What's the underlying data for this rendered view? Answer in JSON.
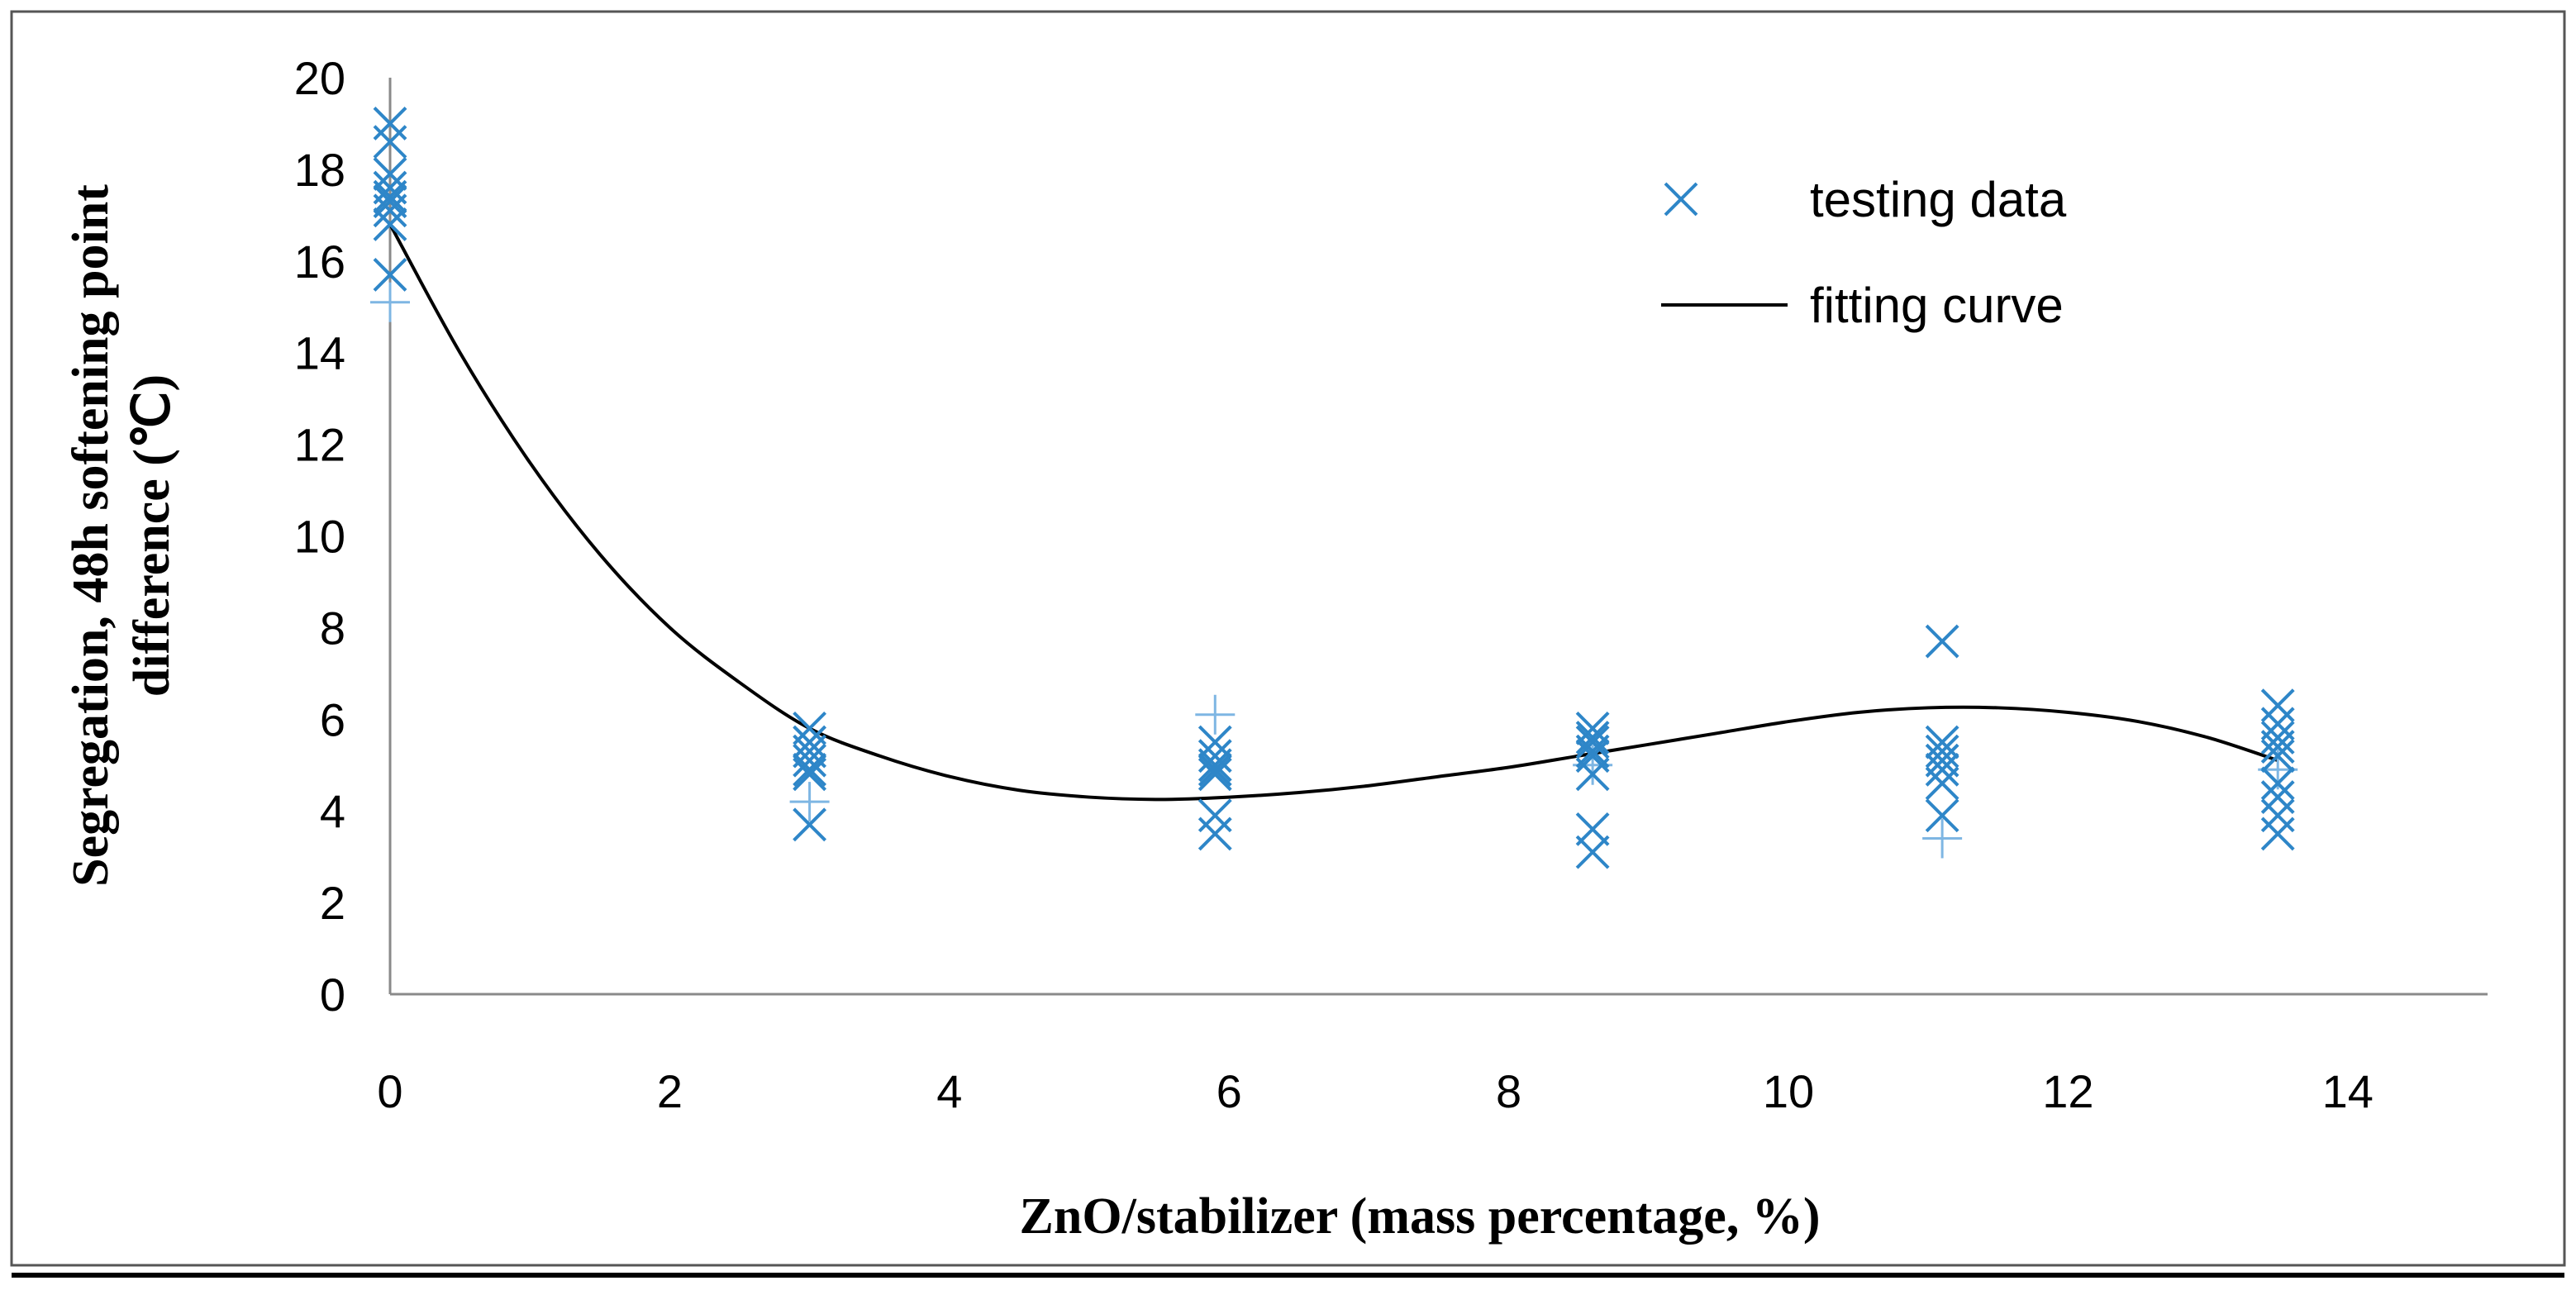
{
  "chart_data": {
    "type": "scatter",
    "title": "",
    "xlabel": "ZnO/stabilizer (mass percentage, %)",
    "ylabel_line1": "Segregation, 48h softening point",
    "ylabel_line2": "difference (℃)",
    "xlim": [
      0,
      15
    ],
    "ylim": [
      0,
      20
    ],
    "x_ticks": [
      "0",
      "2",
      "4",
      "6",
      "8",
      "10",
      "12",
      "14"
    ],
    "y_ticks": [
      "0",
      "2",
      "4",
      "6",
      "8",
      "10",
      "12",
      "14",
      "16",
      "18",
      "20"
    ],
    "grid": false,
    "legend_position": "top-right",
    "series": [
      {
        "name": "testing data",
        "marker": "x",
        "color": "#2E86C8",
        "points": [
          [
            0,
            19.0
          ],
          [
            0,
            18.6
          ],
          [
            0,
            17.9
          ],
          [
            0,
            17.6
          ],
          [
            0,
            17.4
          ],
          [
            0,
            17.3
          ],
          [
            0,
            17.1
          ],
          [
            0,
            16.8
          ],
          [
            0,
            15.7
          ],
          [
            3,
            5.8
          ],
          [
            3,
            5.5
          ],
          [
            3,
            5.3
          ],
          [
            3,
            5.1
          ],
          [
            3,
            4.9
          ],
          [
            3,
            4.8
          ],
          [
            3,
            3.7
          ],
          [
            5.9,
            5.5
          ],
          [
            5.9,
            5.2
          ],
          [
            5.9,
            5.0
          ],
          [
            5.9,
            4.9
          ],
          [
            5.9,
            4.8
          ],
          [
            5.9,
            3.9
          ],
          [
            5.9,
            3.5
          ],
          [
            8.6,
            5.8
          ],
          [
            8.6,
            5.6
          ],
          [
            8.6,
            5.5
          ],
          [
            8.6,
            5.3
          ],
          [
            8.6,
            5.2
          ],
          [
            8.6,
            4.8
          ],
          [
            8.6,
            3.6
          ],
          [
            8.6,
            3.1
          ],
          [
            11.1,
            7.7
          ],
          [
            11.1,
            5.5
          ],
          [
            11.1,
            5.3
          ],
          [
            11.1,
            5.1
          ],
          [
            11.1,
            4.9
          ],
          [
            11.1,
            4.6
          ],
          [
            11.1,
            3.9
          ],
          [
            13.5,
            6.3
          ],
          [
            13.5,
            5.9
          ],
          [
            13.5,
            5.6
          ],
          [
            13.5,
            5.4
          ],
          [
            13.5,
            5.2
          ],
          [
            13.5,
            4.6
          ],
          [
            13.5,
            4.3
          ],
          [
            13.5,
            3.9
          ],
          [
            13.5,
            3.5
          ]
        ]
      },
      {
        "name": "",
        "marker": "+",
        "color": "#7EB6E3",
        "points": [
          [
            0,
            15.1
          ],
          [
            3,
            4.2
          ],
          [
            5.9,
            6.1
          ],
          [
            8.6,
            5.0
          ],
          [
            11.1,
            3.4
          ],
          [
            13.5,
            4.9
          ]
        ]
      },
      {
        "name": "fitting curve",
        "type": "line",
        "color": "#000000",
        "x": [
          0,
          0.5,
          1,
          1.5,
          2,
          2.5,
          3,
          3.5,
          4,
          4.5,
          5,
          5.5,
          6,
          6.5,
          7,
          7.5,
          8,
          8.5,
          9,
          9.5,
          10,
          10.5,
          11,
          11.5,
          12,
          12.5,
          13,
          13.5
        ],
        "y": [
          16.8,
          14.0,
          11.6,
          9.6,
          8.0,
          6.8,
          5.8,
          5.2,
          4.75,
          4.45,
          4.3,
          4.25,
          4.3,
          4.4,
          4.55,
          4.75,
          4.95,
          5.2,
          5.45,
          5.7,
          5.95,
          6.15,
          6.25,
          6.25,
          6.15,
          5.95,
          5.6,
          5.1
        ]
      }
    ]
  }
}
